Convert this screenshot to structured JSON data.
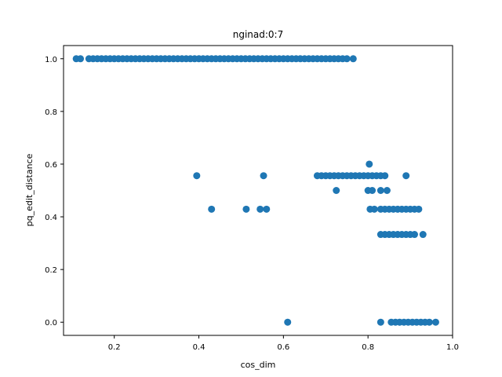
{
  "chart_data": {
    "type": "scatter",
    "title": "nginad:0:7",
    "xlabel": "cos_dim",
    "ylabel": "pq_edit_distance",
    "xlim": [
      0.08,
      1.0
    ],
    "ylim": [
      -0.05,
      1.05
    ],
    "xticks": [
      0.2,
      0.4,
      0.6,
      0.8,
      1.0
    ],
    "xtick_labels": [
      "0.2",
      "0.4",
      "0.6",
      "0.8",
      "1.0"
    ],
    "yticks": [
      0.0,
      0.2,
      0.4,
      0.6,
      0.8,
      1.0
    ],
    "ytick_labels": [
      "0.0",
      "0.2",
      "0.4",
      "0.6",
      "0.8",
      "1.0"
    ],
    "grid": false,
    "marker_color": "#1f77b4",
    "series": [
      {
        "x": [
          0.11,
          0.12,
          0.14,
          0.15,
          0.16,
          0.17,
          0.18,
          0.19,
          0.2,
          0.21,
          0.22,
          0.23,
          0.24,
          0.25,
          0.26,
          0.27,
          0.28,
          0.29,
          0.3,
          0.31,
          0.32,
          0.33,
          0.34,
          0.35,
          0.36,
          0.37,
          0.38,
          0.39,
          0.4,
          0.41,
          0.42,
          0.43,
          0.44,
          0.45,
          0.46,
          0.47,
          0.48,
          0.49,
          0.5,
          0.51,
          0.52,
          0.53,
          0.54,
          0.55,
          0.56,
          0.57,
          0.58,
          0.59,
          0.6,
          0.61,
          0.62,
          0.63,
          0.64,
          0.65,
          0.66,
          0.67,
          0.68,
          0.69,
          0.7,
          0.71,
          0.72,
          0.73,
          0.74,
          0.75,
          0.765,
          0.395,
          0.553,
          0.68,
          0.69,
          0.7,
          0.71,
          0.72,
          0.73,
          0.74,
          0.75,
          0.76,
          0.77,
          0.78,
          0.79,
          0.8,
          0.81,
          0.82,
          0.83,
          0.84,
          0.89,
          0.803,
          0.725,
          0.8,
          0.81,
          0.83,
          0.845,
          0.43,
          0.512,
          0.545,
          0.56,
          0.805,
          0.815,
          0.83,
          0.84,
          0.85,
          0.86,
          0.87,
          0.88,
          0.89,
          0.9,
          0.91,
          0.92,
          0.83,
          0.84,
          0.85,
          0.86,
          0.87,
          0.88,
          0.89,
          0.9,
          0.91,
          0.93,
          0.61,
          0.83,
          0.855,
          0.865,
          0.875,
          0.885,
          0.895,
          0.905,
          0.915,
          0.925,
          0.935,
          0.945,
          0.96
        ],
        "y": [
          1.0,
          1.0,
          1.0,
          1.0,
          1.0,
          1.0,
          1.0,
          1.0,
          1.0,
          1.0,
          1.0,
          1.0,
          1.0,
          1.0,
          1.0,
          1.0,
          1.0,
          1.0,
          1.0,
          1.0,
          1.0,
          1.0,
          1.0,
          1.0,
          1.0,
          1.0,
          1.0,
          1.0,
          1.0,
          1.0,
          1.0,
          1.0,
          1.0,
          1.0,
          1.0,
          1.0,
          1.0,
          1.0,
          1.0,
          1.0,
          1.0,
          1.0,
          1.0,
          1.0,
          1.0,
          1.0,
          1.0,
          1.0,
          1.0,
          1.0,
          1.0,
          1.0,
          1.0,
          1.0,
          1.0,
          1.0,
          1.0,
          1.0,
          1.0,
          1.0,
          1.0,
          1.0,
          1.0,
          1.0,
          1.0,
          0.556,
          0.556,
          0.556,
          0.556,
          0.556,
          0.556,
          0.556,
          0.556,
          0.556,
          0.556,
          0.556,
          0.556,
          0.556,
          0.556,
          0.556,
          0.556,
          0.556,
          0.556,
          0.556,
          0.556,
          0.6,
          0.5,
          0.5,
          0.5,
          0.5,
          0.5,
          0.429,
          0.429,
          0.429,
          0.429,
          0.429,
          0.429,
          0.429,
          0.429,
          0.429,
          0.429,
          0.429,
          0.429,
          0.429,
          0.429,
          0.429,
          0.429,
          0.333,
          0.333,
          0.333,
          0.333,
          0.333,
          0.333,
          0.333,
          0.333,
          0.333,
          0.333,
          0.0,
          0.0,
          0.0,
          0.0,
          0.0,
          0.0,
          0.0,
          0.0,
          0.0,
          0.0,
          0.0,
          0.0,
          0.0
        ]
      }
    ]
  }
}
